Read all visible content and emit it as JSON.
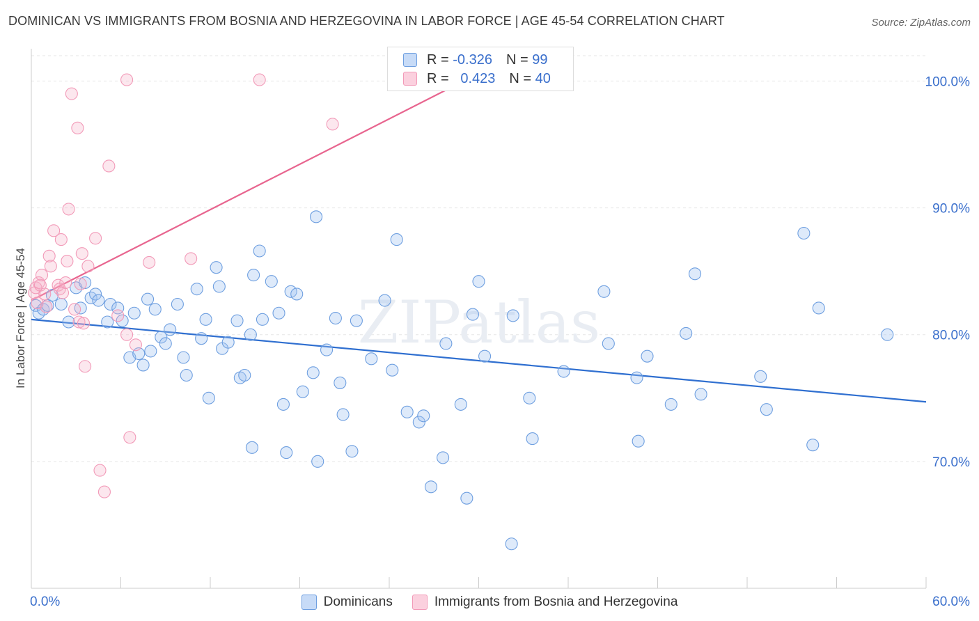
{
  "chart_data": {
    "type": "scatter",
    "title": "DOMINICAN VS IMMIGRANTS FROM BOSNIA AND HERZEGOVINA IN LABOR FORCE | AGE 45-54 CORRELATION CHART",
    "source": "Source: ZipAtlas.com",
    "watermark": "ZIPatlas",
    "ylabel": "In Labor Force | Age 45-54",
    "xlabel": "",
    "xlim": [
      0,
      60
    ],
    "ylim": [
      60,
      102
    ],
    "x_tick_labels": [
      "0.0%",
      "60.0%"
    ],
    "y_tick_labels": [
      "70.0%",
      "80.0%",
      "90.0%",
      "100.0%"
    ],
    "y_ticks": [
      70,
      80,
      90,
      100
    ],
    "grid": true,
    "legend_position": "bottom-center",
    "series": [
      {
        "name": "Dominicans",
        "R": "-0.326",
        "N": "99",
        "color": "#6e9fe0",
        "line_color": "#2f6fd0",
        "trend": {
          "x0": 0,
          "y0": 81.2,
          "x1": 60,
          "y1": 74.7
        },
        "points": [
          [
            0.3,
            82.3
          ],
          [
            0.5,
            81.7
          ],
          [
            0.8,
            82.0
          ],
          [
            1.1,
            82.3
          ],
          [
            1.4,
            83.1
          ],
          [
            2.0,
            82.4
          ],
          [
            2.5,
            81.0
          ],
          [
            3.0,
            83.7
          ],
          [
            3.3,
            82.1
          ],
          [
            3.6,
            84.1
          ],
          [
            4.0,
            82.9
          ],
          [
            4.3,
            83.2
          ],
          [
            4.5,
            82.7
          ],
          [
            5.1,
            81.0
          ],
          [
            5.3,
            82.4
          ],
          [
            5.8,
            82.1
          ],
          [
            6.1,
            81.1
          ],
          [
            6.6,
            78.2
          ],
          [
            6.9,
            81.7
          ],
          [
            7.2,
            78.5
          ],
          [
            7.5,
            77.6
          ],
          [
            7.8,
            82.8
          ],
          [
            8.0,
            78.7
          ],
          [
            8.3,
            82.0
          ],
          [
            8.7,
            79.8
          ],
          [
            9.0,
            79.3
          ],
          [
            9.3,
            80.4
          ],
          [
            9.8,
            82.4
          ],
          [
            10.2,
            78.2
          ],
          [
            10.4,
            76.8
          ],
          [
            11.1,
            83.6
          ],
          [
            11.4,
            79.7
          ],
          [
            11.7,
            81.2
          ],
          [
            11.9,
            75.0
          ],
          [
            12.4,
            85.3
          ],
          [
            12.6,
            83.8
          ],
          [
            12.8,
            78.9
          ],
          [
            13.2,
            79.4
          ],
          [
            13.8,
            81.1
          ],
          [
            14.0,
            76.6
          ],
          [
            14.3,
            76.8
          ],
          [
            14.7,
            80.0
          ],
          [
            14.9,
            84.7
          ],
          [
            14.8,
            71.1
          ],
          [
            15.3,
            86.6
          ],
          [
            15.5,
            81.2
          ],
          [
            16.1,
            84.2
          ],
          [
            16.6,
            81.7
          ],
          [
            16.9,
            74.5
          ],
          [
            17.1,
            70.7
          ],
          [
            17.4,
            83.4
          ],
          [
            17.8,
            83.2
          ],
          [
            18.2,
            75.5
          ],
          [
            18.9,
            77.0
          ],
          [
            19.2,
            70.0
          ],
          [
            19.1,
            89.3
          ],
          [
            19.8,
            78.8
          ],
          [
            20.4,
            81.3
          ],
          [
            20.7,
            76.2
          ],
          [
            20.9,
            73.7
          ],
          [
            21.5,
            70.8
          ],
          [
            21.8,
            81.1
          ],
          [
            22.8,
            78.1
          ],
          [
            23.7,
            82.7
          ],
          [
            24.2,
            77.2
          ],
          [
            24.5,
            87.5
          ],
          [
            25.2,
            73.9
          ],
          [
            26.0,
            73.1
          ],
          [
            26.3,
            73.6
          ],
          [
            26.8,
            68.0
          ],
          [
            27.6,
            70.3
          ],
          [
            27.8,
            79.3
          ],
          [
            28.8,
            74.5
          ],
          [
            29.2,
            67.1
          ],
          [
            29.6,
            81.6
          ],
          [
            30.0,
            84.2
          ],
          [
            30.4,
            78.3
          ],
          [
            32.3,
            81.5
          ],
          [
            32.2,
            63.5
          ],
          [
            33.4,
            75.0
          ],
          [
            33.6,
            71.8
          ],
          [
            35.7,
            77.1
          ],
          [
            38.4,
            83.4
          ],
          [
            38.7,
            79.3
          ],
          [
            40.6,
            76.6
          ],
          [
            40.7,
            71.6
          ],
          [
            41.3,
            78.3
          ],
          [
            42.9,
            74.5
          ],
          [
            43.9,
            80.1
          ],
          [
            44.5,
            84.8
          ],
          [
            44.9,
            75.3
          ],
          [
            48.9,
            76.7
          ],
          [
            49.3,
            74.1
          ],
          [
            51.8,
            88.0
          ],
          [
            52.4,
            71.3
          ],
          [
            52.8,
            82.1
          ],
          [
            57.4,
            80.0
          ]
        ]
      },
      {
        "name": "Immigrants from Bosnia and Herzegovina",
        "R": "0.423",
        "N": "40",
        "color": "#f29ab8",
        "line_color": "#e8658f",
        "trend": {
          "x0": 0,
          "y0": 82.7,
          "x1": 30,
          "y1": 100.6
        },
        "points": [
          [
            0.2,
            83.3
          ],
          [
            0.3,
            83.7
          ],
          [
            0.4,
            82.5
          ],
          [
            0.5,
            84.1
          ],
          [
            0.6,
            83.9
          ],
          [
            0.7,
            84.7
          ],
          [
            0.9,
            83.2
          ],
          [
            1.0,
            82.2
          ],
          [
            1.2,
            86.2
          ],
          [
            1.3,
            85.4
          ],
          [
            1.5,
            88.2
          ],
          [
            1.8,
            83.9
          ],
          [
            1.9,
            83.6
          ],
          [
            2.0,
            87.5
          ],
          [
            2.1,
            83.3
          ],
          [
            2.3,
            84.1
          ],
          [
            2.4,
            85.8
          ],
          [
            2.5,
            89.9
          ],
          [
            2.7,
            99.0
          ],
          [
            2.9,
            82.0
          ],
          [
            3.1,
            96.3
          ],
          [
            3.2,
            81.0
          ],
          [
            3.3,
            84.0
          ],
          [
            3.4,
            86.4
          ],
          [
            3.5,
            80.9
          ],
          [
            3.6,
            77.5
          ],
          [
            3.8,
            85.4
          ],
          [
            4.3,
            87.6
          ],
          [
            4.6,
            69.3
          ],
          [
            4.9,
            67.6
          ],
          [
            5.2,
            93.3
          ],
          [
            5.8,
            81.5
          ],
          [
            6.4,
            80.0
          ],
          [
            6.6,
            71.9
          ],
          [
            7.0,
            79.2
          ],
          [
            7.9,
            85.7
          ],
          [
            10.7,
            86.0
          ],
          [
            6.4,
            100.1
          ],
          [
            15.3,
            100.1
          ],
          [
            20.2,
            96.6
          ]
        ]
      }
    ]
  }
}
